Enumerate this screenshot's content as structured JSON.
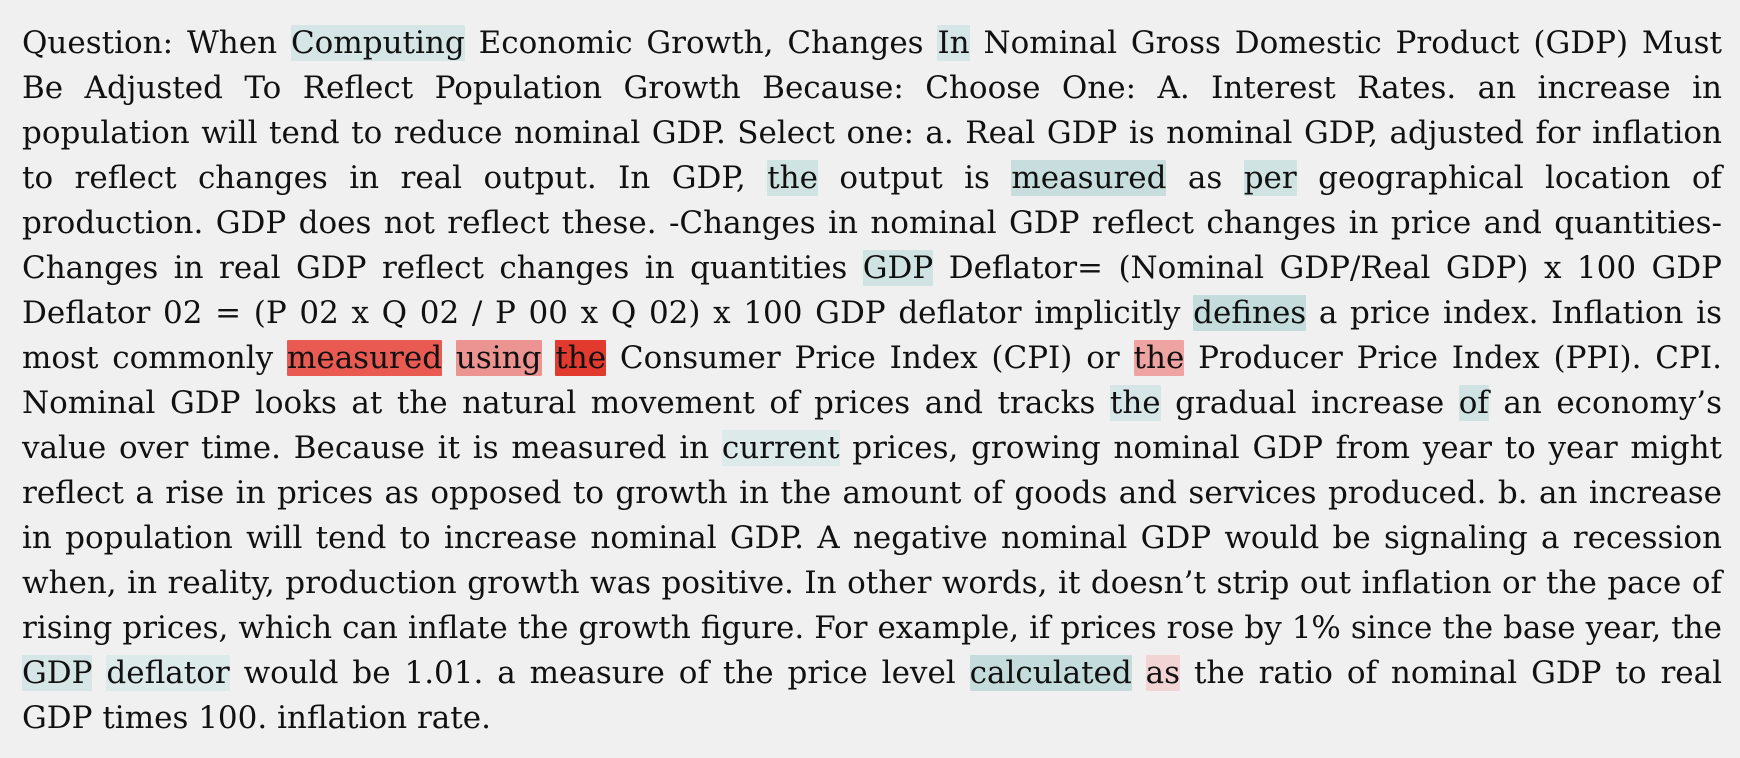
{
  "document": {
    "colors": {
      "background": "#f0f0f0",
      "text": "#111111",
      "highlight_strong": "#e23a2e",
      "highlight_medium": "#e85a52",
      "highlight_soft": "#eea4a2",
      "highlight_teal": "#c5dcdc"
    },
    "segments": [
      {
        "t": " Question: When "
      },
      {
        "t": "Computing",
        "bg": "#d6e6e6"
      },
      {
        "t": " Economic Growth,  Changes "
      },
      {
        "t": "In",
        "bg": "#d6e6e6"
      },
      {
        "t": " Nominal Gross Domestic Product (GDP) Must Be Adjusted To Reflect Population Growth Because: Choose One: A. Interest Rates. an increase in population will tend to reduce nominal GDP. Select one: a. Real GDP is nominal GDP, adjusted for inflation to reflect changes in real output. In GDP, "
      },
      {
        "t": "the",
        "bg": "#d0e3e3"
      },
      {
        "t": " output is "
      },
      {
        "t": "measured",
        "bg": "#c8dede"
      },
      {
        "t": " as "
      },
      {
        "t": "per",
        "bg": "#d0e3e3"
      },
      {
        "t": " geographical location of production.  GDP does not reflect these. -Changes in nominal GDP reflect changes in price and quantities-Changes in real GDP reflect changes in quantities "
      },
      {
        "t": "GDP",
        "bg": "#d0e3e3"
      },
      {
        "t": " Deflator= (Nominal GDP/Real GDP) x 100 GDP Deflator 02 = (P 02 x Q 02 / P 00 x Q 02) x 100 GDP deflator implicitly "
      },
      {
        "t": "defines",
        "bg": "#c5dcdc"
      },
      {
        "t": " a price index. Inflation is most commonly "
      },
      {
        "t": "measured",
        "bg": "#e85a52"
      },
      {
        "t": " "
      },
      {
        "t": "using",
        "bg": "#ec9492"
      },
      {
        "t": " "
      },
      {
        "t": "the",
        "bg": "#e23a2e"
      },
      {
        "t": " Consumer Price Index (CPI) or "
      },
      {
        "t": "the",
        "bg": "#eea4a2"
      },
      {
        "t": " Producer Price Index (PPI). CPI. Nominal GDP looks at the natural movement of prices and tracks "
      },
      {
        "t": "the",
        "bg": "#d6e6e6"
      },
      {
        "t": " gradual increase "
      },
      {
        "t": "of",
        "bg": "#d0e3e3"
      },
      {
        "t": " an economy’s value over time. Because it is measured in "
      },
      {
        "t": "current",
        "bg": "#dceaea"
      },
      {
        "t": " prices, growing nominal GDP from year to year might reflect a rise in prices as opposed to growth in the amount of goods and services produced.  b. an increase in population will tend to increase nominal GDP. A negative nominal GDP would be signaling a recession when, in reality, production growth was positive. In other words, it doesn’t strip out inflation or the pace of rising prices, which can inflate the growth figure. For example, if prices rose by 1% since the base year, the "
      },
      {
        "t": "GDP",
        "bg": "#d6e6e6"
      },
      {
        "t": " "
      },
      {
        "t": "deflator",
        "bg": "#dceaea"
      },
      {
        "t": " would be 1.01. a measure of the price level "
      },
      {
        "t": "calculated",
        "bg": "#c5dcdc"
      },
      {
        "t": " "
      },
      {
        "t": "as",
        "bg": "#f2d4d4"
      },
      {
        "t": " the ratio of nominal GDP to real GDP times 100. inflation rate."
      }
    ]
  }
}
